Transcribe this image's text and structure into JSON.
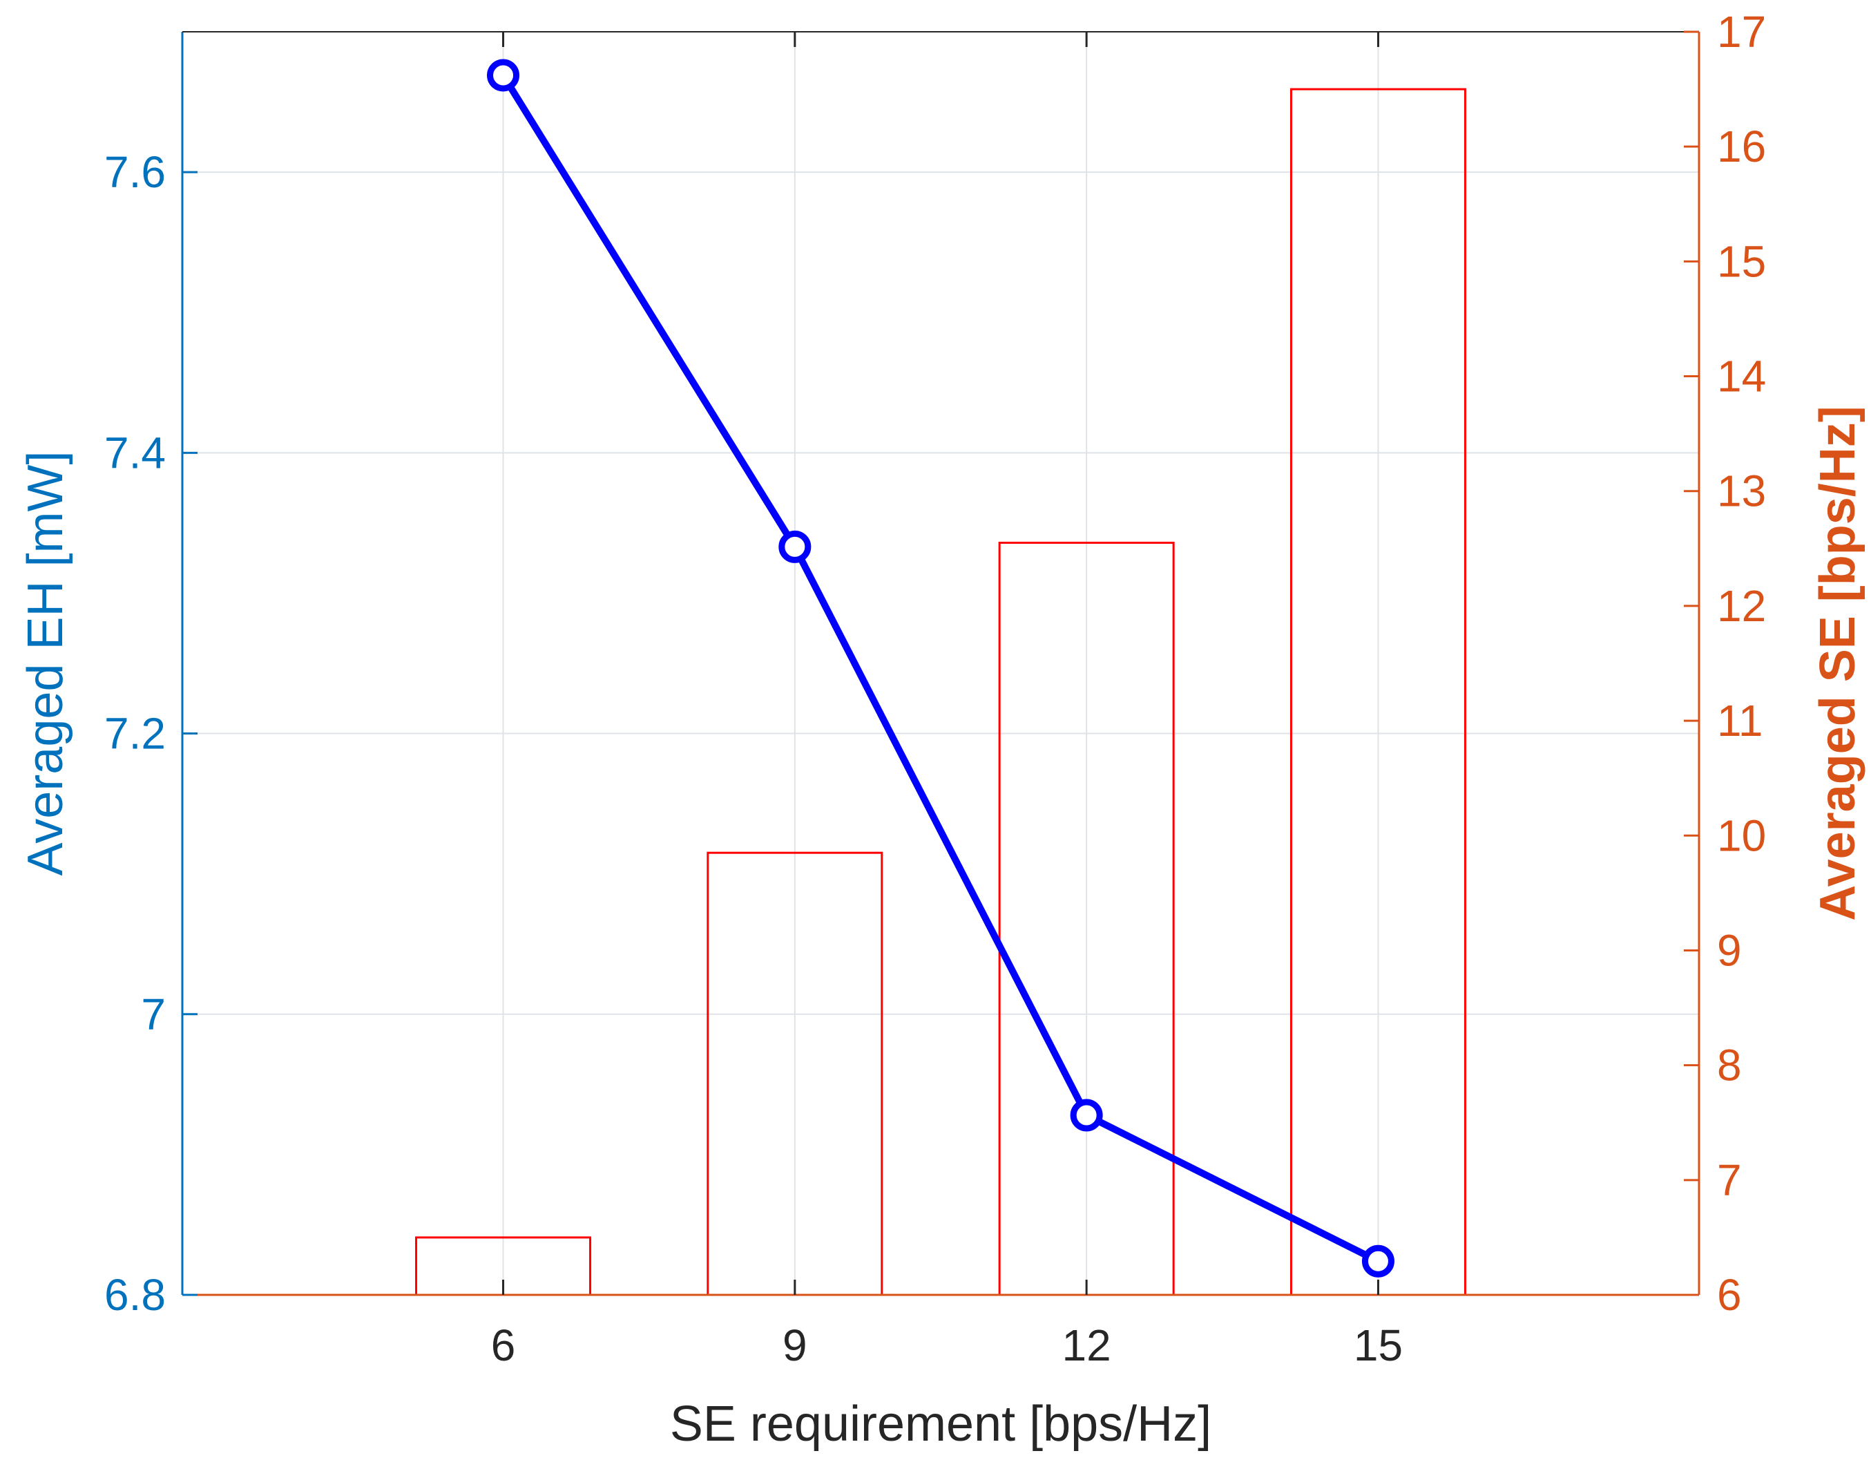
{
  "chart_data": {
    "type": "bar+line",
    "title": "",
    "xlabel": "SE requirement [bps/Hz]",
    "ylabel_left": "Averaged EH [mW]",
    "ylabel_right": "Averaged SE [bps/Hz]",
    "categories": [
      6,
      9,
      12,
      15
    ],
    "xlim": [
      2.7,
      18.3
    ],
    "ylim_left": [
      6.8,
      7.7
    ],
    "ylim_right": [
      6,
      17
    ],
    "yticks_left": [
      "6.8",
      "7",
      "7.2",
      "7.4",
      "7.6"
    ],
    "yticks_right": [
      "6",
      "7",
      "8",
      "9",
      "10",
      "11",
      "12",
      "13",
      "14",
      "15",
      "16",
      "17"
    ],
    "xticks": [
      "6",
      "9",
      "12",
      "15"
    ],
    "grid": true,
    "series": [
      {
        "type": "line",
        "axis": "left",
        "values": [
          7.669,
          7.333,
          6.928,
          6.824
        ],
        "color": "#0000FF",
        "marker": "circle"
      },
      {
        "type": "bar",
        "axis": "right",
        "values": [
          6.5,
          9.85,
          12.55,
          16.5
        ],
        "color": "#FF0000",
        "fill": "none"
      }
    ],
    "colors": {
      "left_axis": "#0072BD",
      "right_axis": "#D95319",
      "grid": "#DFE3E8",
      "text": "#262626"
    }
  }
}
